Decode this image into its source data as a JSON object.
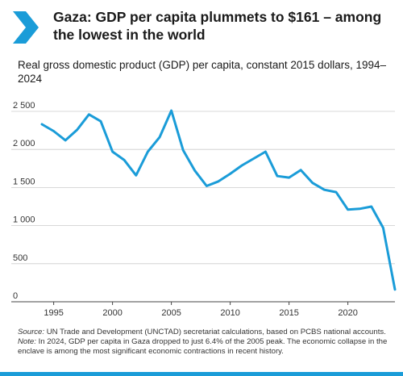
{
  "header": {
    "title": "Gaza: GDP per capita plummets to $161 – among the lowest in the world",
    "subtitle": "Real gross domestic product (GDP) per capita, constant 2015 dollars, 1994–2024"
  },
  "notes": {
    "source_label": "Source:",
    "source_text": "UN Trade and Development (UNCTAD) secretariat calculations, based on PCBS national accounts.",
    "note_label": "Note:",
    "note_text": "In 2024, GDP per capita in Gaza dropped to just 6.4% of the 2005 peak. The economic collapse in the enclave is among the most significant economic contractions in recent history."
  },
  "colors": {
    "accent": "#1a9cd8",
    "line": "#1a9cd8",
    "gridline": "#cccccc",
    "text": "#1a1a1a"
  },
  "chart_data": {
    "type": "line",
    "title": "",
    "xlabel": "",
    "ylabel": "",
    "grid": true,
    "ylim": [
      0,
      2500
    ],
    "xlim": [
      1994,
      2024
    ],
    "y_ticks": [
      0,
      500,
      1000,
      1500,
      2000,
      2500
    ],
    "y_tick_labels": [
      "0",
      "500",
      "1 000",
      "1 500",
      "2 000",
      "2 500"
    ],
    "x_ticks": [
      1995,
      2000,
      2005,
      2010,
      2015,
      2020
    ],
    "x_tick_labels": [
      "1995",
      "2000",
      "2005",
      "2010",
      "2015",
      "2020"
    ],
    "series": [
      {
        "x": [
          1994,
          1995,
          1996,
          1997,
          1998,
          1999,
          2000,
          2001,
          2002,
          2003,
          2004,
          2005,
          2006,
          2007,
          2008,
          2009,
          2010,
          2011,
          2012,
          2013,
          2014,
          2015,
          2016,
          2017,
          2018,
          2019,
          2020,
          2021,
          2022,
          2023,
          2024
        ],
        "values": [
          2330,
          2240,
          2120,
          2260,
          2460,
          2370,
          1970,
          1860,
          1660,
          1970,
          2160,
          2510,
          1990,
          1720,
          1520,
          1580,
          1680,
          1790,
          1880,
          1970,
          1650,
          1630,
          1730,
          1560,
          1470,
          1440,
          1210,
          1220,
          1250,
          970,
          161
        ]
      }
    ]
  }
}
